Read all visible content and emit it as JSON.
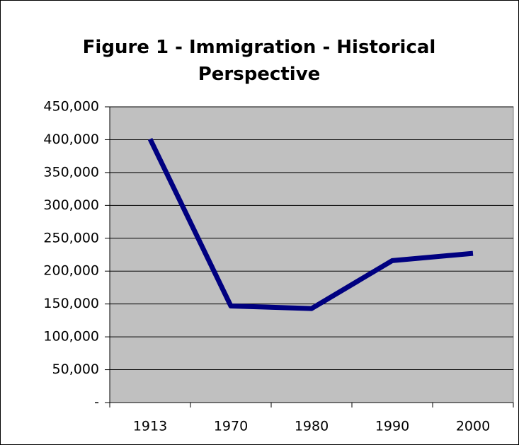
{
  "chart_data": {
    "type": "line",
    "title": "Figure 1 - Immigration - Historical Perspective",
    "categories": [
      "1913",
      "1970",
      "1980",
      "1990",
      "2000"
    ],
    "values": [
      401000,
      147000,
      143000,
      216000,
      227000
    ],
    "color": "#000080",
    "ylim": [
      0,
      450000
    ],
    "yticks": [
      {
        "value": 0,
        "label": "-"
      },
      {
        "value": 50000,
        "label": "50,000"
      },
      {
        "value": 100000,
        "label": "100,000"
      },
      {
        "value": 150000,
        "label": "150,000"
      },
      {
        "value": 200000,
        "label": "200,000"
      },
      {
        "value": 250000,
        "label": "250,000"
      },
      {
        "value": 300000,
        "label": "300,000"
      },
      {
        "value": 350000,
        "label": "350,000"
      },
      {
        "value": 400000,
        "label": "400,000"
      },
      {
        "value": 450000,
        "label": "450,000"
      }
    ],
    "grid": true
  }
}
